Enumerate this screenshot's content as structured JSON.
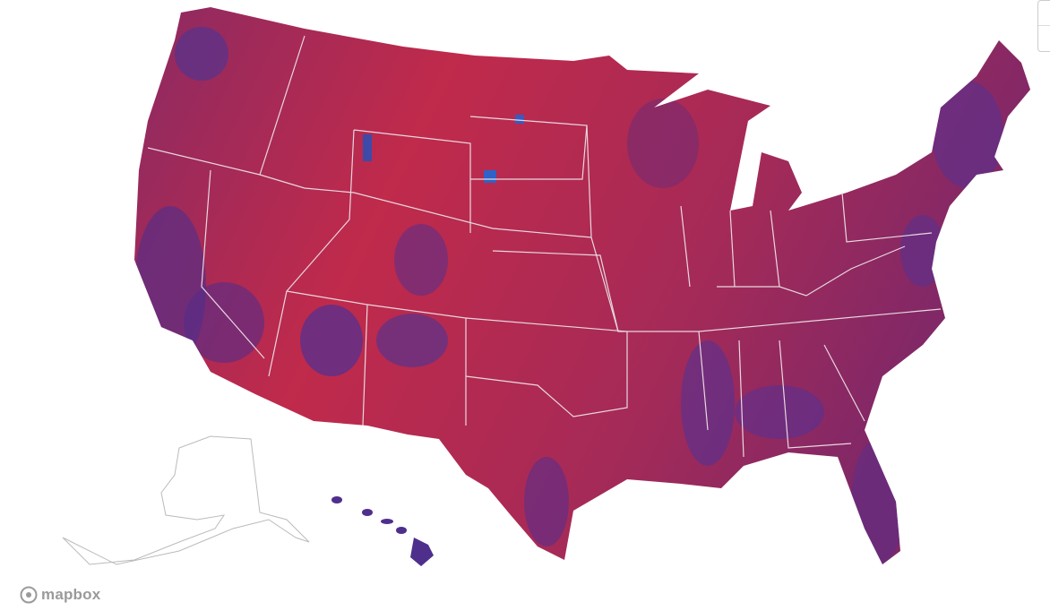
{
  "attribution": {
    "logo_text": "mapbox"
  }
}
